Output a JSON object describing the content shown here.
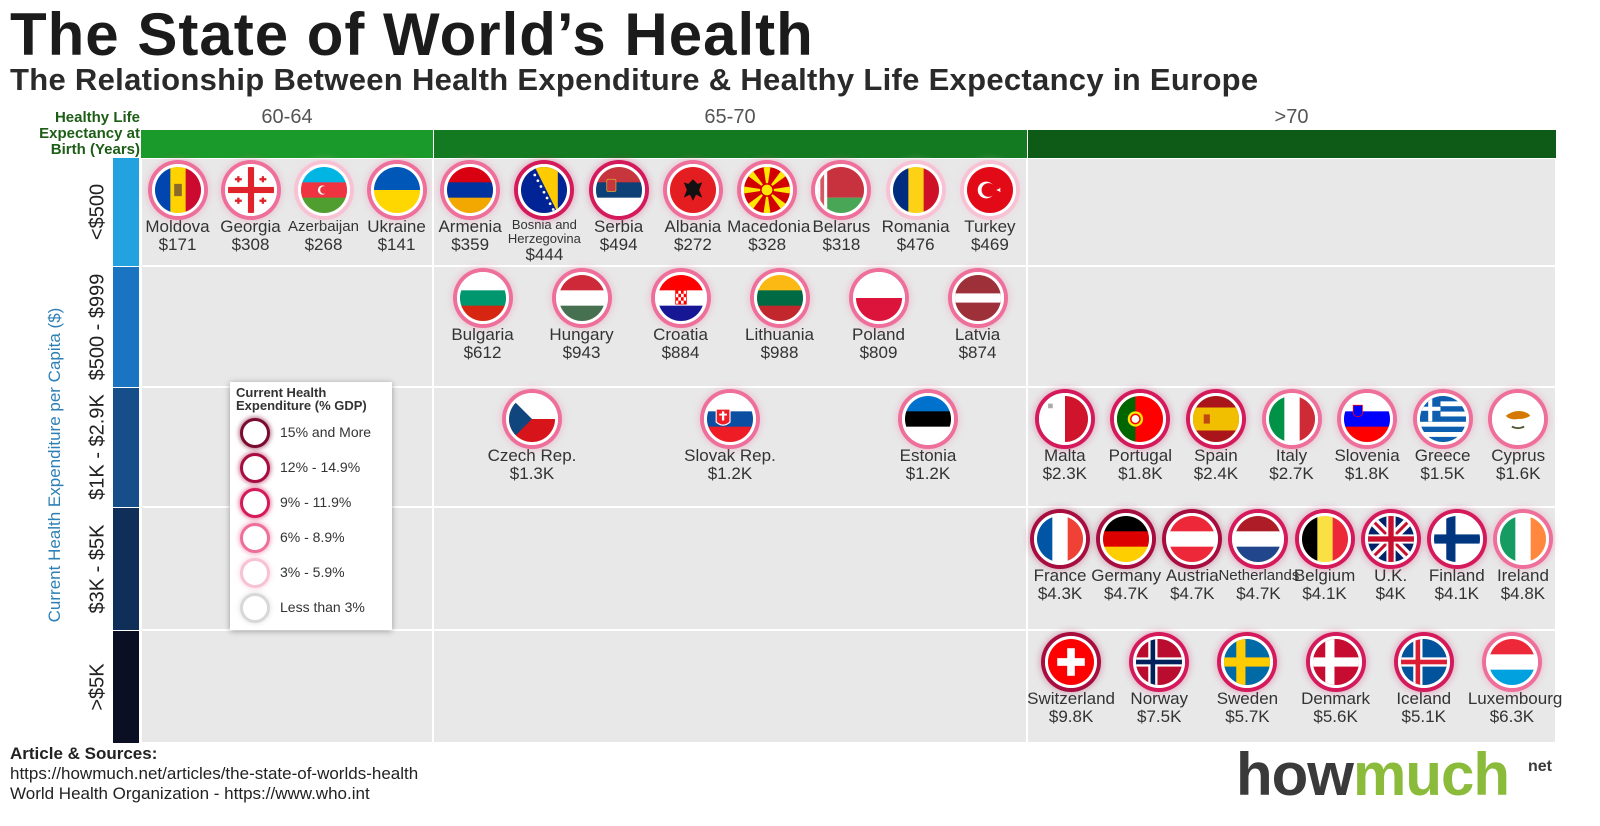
{
  "title": "The State of World’s Health",
  "subtitle": "The Relationship Between Health Expenditure & Healthy Life Expectancy in Europe",
  "chart_data": {
    "type": "table",
    "x_axis": {
      "label": "Healthy Life Expectancy at Birth (Years)",
      "categories": [
        "60-64",
        "65-70",
        ">70"
      ],
      "colors": [
        "#1a9a2a",
        "#137a22",
        "#0e5a17"
      ]
    },
    "y_axis": {
      "label": "Current Health Expenditure per Capita ($)",
      "categories": [
        "<$500",
        "$500 - $999",
        "$1K - $2.9K",
        "$3K - $5K",
        ">$5K"
      ],
      "colors": [
        "#22a3df",
        "#1b74c2",
        "#154e88",
        "#102f58",
        "#0a0f24"
      ]
    },
    "legend": {
      "title": "Current Health Expenditure (% GDP)",
      "items": [
        {
          "label": "15% and More",
          "color": "#7a0a2e"
        },
        {
          "label": "12% - 14.9%",
          "color": "#a80d3f"
        },
        {
          "label": "9% - 11.9%",
          "color": "#d41a5a"
        },
        {
          "label": "6% - 8.9%",
          "color": "#ee6f9a"
        },
        {
          "label": "3% - 5.9%",
          "color": "#f7c3d4"
        },
        {
          "label": "Less than 3%",
          "color": "#d8d8d8"
        }
      ]
    },
    "countries": [
      {
        "name": "Moldova",
        "value": "$171",
        "hle": 0,
        "exp": 0,
        "flag": "moldova",
        "gdp": 3
      },
      {
        "name": "Georgia",
        "value": "$308",
        "hle": 0,
        "exp": 0,
        "flag": "georgia",
        "gdp": 3
      },
      {
        "name": "Azerbaijan",
        "value": "$268",
        "hle": 0,
        "exp": 0,
        "flag": "azerbaijan",
        "gdp": 4
      },
      {
        "name": "Ukraine",
        "value": "$141",
        "hle": 0,
        "exp": 0,
        "flag": "ukraine",
        "gdp": 3
      },
      {
        "name": "Armenia",
        "value": "$359",
        "hle": 1,
        "exp": 0,
        "flag": "armenia",
        "gdp": 3
      },
      {
        "name": "Bosnia and Herzegovina",
        "value": "$444",
        "hle": 1,
        "exp": 0,
        "flag": "bosnia",
        "gdp": 2
      },
      {
        "name": "Serbia",
        "value": "$494",
        "hle": 1,
        "exp": 0,
        "flag": "serbia",
        "gdp": 2
      },
      {
        "name": "Albania",
        "value": "$272",
        "hle": 1,
        "exp": 0,
        "flag": "albania",
        "gdp": 3
      },
      {
        "name": "Macedonia",
        "value": "$328",
        "hle": 1,
        "exp": 0,
        "flag": "macedonia",
        "gdp": 3
      },
      {
        "name": "Belarus",
        "value": "$318",
        "hle": 1,
        "exp": 0,
        "flag": "belarus",
        "gdp": 3
      },
      {
        "name": "Romania",
        "value": "$476",
        "hle": 1,
        "exp": 0,
        "flag": "romania",
        "gdp": 4
      },
      {
        "name": "Turkey",
        "value": "$469",
        "hle": 1,
        "exp": 0,
        "flag": "turkey",
        "gdp": 4
      },
      {
        "name": "Bulgaria",
        "value": "$612",
        "hle": 1,
        "exp": 1,
        "flag": "bulgaria",
        "gdp": 3
      },
      {
        "name": "Hungary",
        "value": "$943",
        "hle": 1,
        "exp": 1,
        "flag": "hungary",
        "gdp": 3
      },
      {
        "name": "Croatia",
        "value": "$884",
        "hle": 1,
        "exp": 1,
        "flag": "croatia",
        "gdp": 3
      },
      {
        "name": "Lithuania",
        "value": "$988",
        "hle": 1,
        "exp": 1,
        "flag": "lithuania",
        "gdp": 3
      },
      {
        "name": "Poland",
        "value": "$809",
        "hle": 1,
        "exp": 1,
        "flag": "poland",
        "gdp": 3
      },
      {
        "name": "Latvia",
        "value": "$874",
        "hle": 1,
        "exp": 1,
        "flag": "latvia",
        "gdp": 3
      },
      {
        "name": "Czech Rep.",
        "value": "$1.3K",
        "hle": 1,
        "exp": 2,
        "flag": "czech",
        "gdp": 3
      },
      {
        "name": "Slovak Rep.",
        "value": "$1.2K",
        "hle": 1,
        "exp": 2,
        "flag": "slovakia",
        "gdp": 3
      },
      {
        "name": "Estonia",
        "value": "$1.2K",
        "hle": 1,
        "exp": 2,
        "flag": "estonia",
        "gdp": 3
      },
      {
        "name": "Malta",
        "value": "$2.3K",
        "hle": 2,
        "exp": 2,
        "flag": "malta",
        "gdp": 2
      },
      {
        "name": "Portugal",
        "value": "$1.8K",
        "hle": 2,
        "exp": 2,
        "flag": "portugal",
        "gdp": 2
      },
      {
        "name": "Spain",
        "value": "$2.4K",
        "hle": 2,
        "exp": 2,
        "flag": "spain",
        "gdp": 2
      },
      {
        "name": "Italy",
        "value": "$2.7K",
        "hle": 2,
        "exp": 2,
        "flag": "italy",
        "gdp": 3
      },
      {
        "name": "Slovenia",
        "value": "$1.8K",
        "hle": 2,
        "exp": 2,
        "flag": "slovenia",
        "gdp": 3
      },
      {
        "name": "Greece",
        "value": "$1.5K",
        "hle": 2,
        "exp": 2,
        "flag": "greece",
        "gdp": 3
      },
      {
        "name": "Cyprus",
        "value": "$1.6K",
        "hle": 2,
        "exp": 2,
        "flag": "cyprus",
        "gdp": 3
      },
      {
        "name": "France",
        "value": "$4.3K",
        "hle": 2,
        "exp": 3,
        "flag": "france",
        "gdp": 1
      },
      {
        "name": "Germany",
        "value": "$4.7K",
        "hle": 2,
        "exp": 3,
        "flag": "germany",
        "gdp": 1
      },
      {
        "name": "Austria",
        "value": "$4.7K",
        "hle": 2,
        "exp": 3,
        "flag": "austria",
        "gdp": 1
      },
      {
        "name": "Netherlands",
        "value": "$4.7K",
        "hle": 2,
        "exp": 3,
        "flag": "netherlands",
        "gdp": 2
      },
      {
        "name": "Belgium",
        "value": "$4.1K",
        "hle": 2,
        "exp": 3,
        "flag": "belgium",
        "gdp": 2
      },
      {
        "name": "U.K.",
        "value": "$4K",
        "hle": 2,
        "exp": 3,
        "flag": "uk",
        "gdp": 2
      },
      {
        "name": "Finland",
        "value": "$4.1K",
        "hle": 2,
        "exp": 3,
        "flag": "finland",
        "gdp": 2
      },
      {
        "name": "Ireland",
        "value": "$4.8K",
        "hle": 2,
        "exp": 3,
        "flag": "ireland",
        "gdp": 3
      },
      {
        "name": "Switzerland",
        "value": "$9.8K",
        "hle": 2,
        "exp": 4,
        "flag": "switzerland",
        "gdp": 1
      },
      {
        "name": "Norway",
        "value": "$7.5K",
        "hle": 2,
        "exp": 4,
        "flag": "norway",
        "gdp": 2
      },
      {
        "name": "Sweden",
        "value": "$5.7K",
        "hle": 2,
        "exp": 4,
        "flag": "sweden",
        "gdp": 2
      },
      {
        "name": "Denmark",
        "value": "$5.6K",
        "hle": 2,
        "exp": 4,
        "flag": "denmark",
        "gdp": 2
      },
      {
        "name": "Iceland",
        "value": "$5.1K",
        "hle": 2,
        "exp": 4,
        "flag": "iceland",
        "gdp": 2
      },
      {
        "name": "Luxembourg",
        "value": "$6.3K",
        "hle": 2,
        "exp": 4,
        "flag": "luxembourg",
        "gdp": 3
      }
    ]
  },
  "sources": {
    "heading": "Article & Sources:",
    "line1": "https://howmuch.net/articles/the-state-of-worlds-health",
    "line2": "World Health Organization - https://www.who.int"
  },
  "logo": {
    "part1": "how",
    "part2": "much",
    "part3": "net"
  }
}
